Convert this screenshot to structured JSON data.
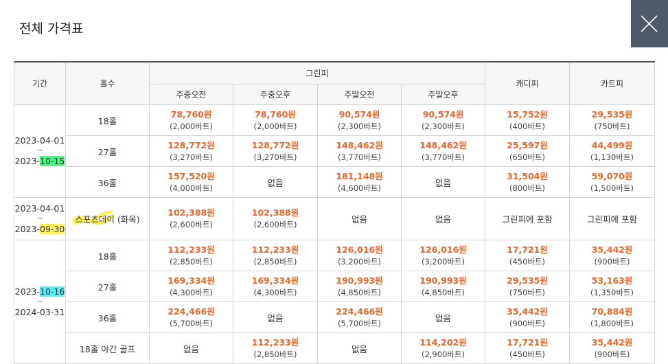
{
  "title": "전체 가격표",
  "close_icon": "close-icon",
  "headers": {
    "period": "기간",
    "holes": "홀수",
    "green_fee": "그린피",
    "caddie_fee": "캐디피",
    "cart_fee": "카트피",
    "sub": [
      "주중오전",
      "주중오후",
      "주말오전",
      "주말오후"
    ]
  },
  "periods": [
    {
      "start": "2023-04-01",
      "tilde": "~",
      "end_prefix": "2023-",
      "end_hl": "10-15",
      "highlight": "#3dfb7e"
    },
    {
      "start": "2023-04-01",
      "tilde": "~",
      "end_prefix": "2023-",
      "end_hl": "09-30",
      "highlight": "#fdf25a"
    },
    {
      "start_prefix": "2023-",
      "start_hl": "10-16",
      "tilde": "~",
      "end": "2024-03-31",
      "highlight": "#4ff0f8"
    }
  ],
  "rows": [
    {
      "holes": "18홀",
      "cells": [
        [
          "78,760원",
          "(2,000바트)"
        ],
        [
          "78,760원",
          "(2,000바트)"
        ],
        [
          "90,574원",
          "(2,300바트)"
        ],
        [
          "90,574원",
          "(2,300바트)"
        ],
        [
          "15,752원",
          "(400바트)"
        ],
        [
          "29,535원",
          "(750바트)"
        ]
      ]
    },
    {
      "holes": "27홀",
      "cells": [
        [
          "128,772원",
          "(3,270바트)"
        ],
        [
          "128,772원",
          "(3,270바트)"
        ],
        [
          "148,462원",
          "(3,770바트)"
        ],
        [
          "148,462원",
          "(3,770바트)"
        ],
        [
          "25,597원",
          "(650바트)"
        ],
        [
          "44,499원",
          "(1,130바트)"
        ]
      ]
    },
    {
      "holes": "36홀",
      "cells": [
        [
          "157,520원",
          "(4,000바트)"
        ],
        [
          "없음",
          ""
        ],
        [
          "181,148원",
          "(4,600바트)"
        ],
        [
          "없음",
          ""
        ],
        [
          "31,504원",
          "(800바트)"
        ],
        [
          "59,070원",
          "(1,500바트)"
        ]
      ]
    },
    {
      "holes": "스포츠데이 (화목)",
      "cells": [
        [
          "102,388원",
          "(2,600바트)"
        ],
        [
          "102,388원",
          "(2,600바트)"
        ],
        [
          "없음",
          ""
        ],
        [
          "없음",
          ""
        ],
        [
          "그린피에 포함",
          ""
        ],
        [
          "그린피에 포함",
          ""
        ]
      ]
    },
    {
      "holes": "18홀",
      "cells": [
        [
          "112,233원",
          "(2,850바트)"
        ],
        [
          "112,233원",
          "(2,850바트)"
        ],
        [
          "126,016원",
          "(3,200바트)"
        ],
        [
          "126,016원",
          "(3,200바트)"
        ],
        [
          "17,721원",
          "(450바트)"
        ],
        [
          "35,442원",
          "(900바트)"
        ]
      ]
    },
    {
      "holes": "27홀",
      "cells": [
        [
          "169,334원",
          "(4,300바트)"
        ],
        [
          "169,334원",
          "(4,300바트)"
        ],
        [
          "190,993원",
          "(4,850바트)"
        ],
        [
          "190,993원",
          "(4,850바트)"
        ],
        [
          "29,535원",
          "(750바트)"
        ],
        [
          "53,163원",
          "(1,350바트)"
        ]
      ]
    },
    {
      "holes": "36홀",
      "cells": [
        [
          "224,466원",
          "(5,700바트)"
        ],
        [
          "없음",
          ""
        ],
        [
          "224,466원",
          "(5,700바트)"
        ],
        [
          "없음",
          ""
        ],
        [
          "35,442원",
          "(900바트)"
        ],
        [
          "70,884원",
          "(1,800바트)"
        ]
      ]
    },
    {
      "holes": "18홀 야간 골프",
      "cells": [
        [
          "없음",
          ""
        ],
        [
          "112,233원",
          "(2,850바트)"
        ],
        [
          "없음",
          ""
        ],
        [
          "114,202원",
          "(2,900바트)"
        ],
        [
          "17,721원",
          "(450바트)"
        ],
        [
          "35,442원",
          "(900바트)"
        ]
      ]
    }
  ]
}
